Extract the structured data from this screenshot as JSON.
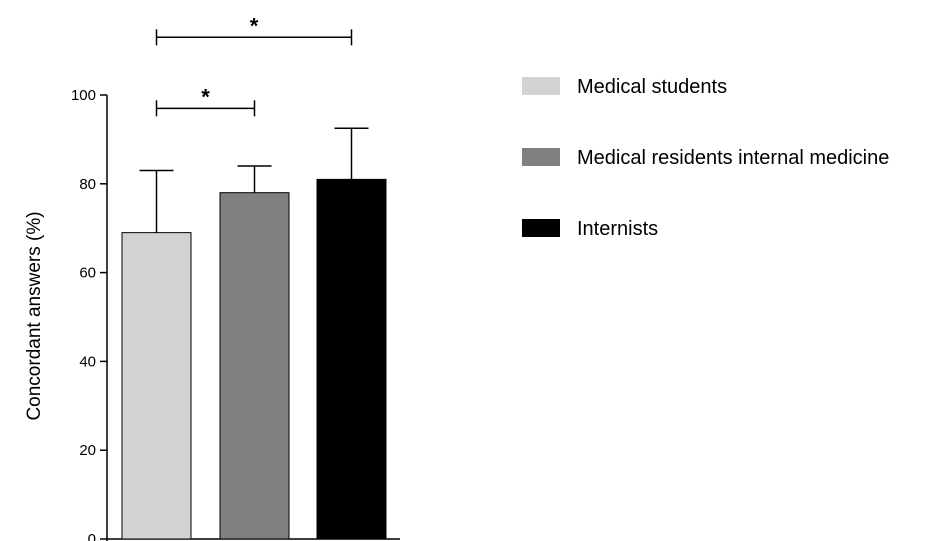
{
  "chart_data": {
    "type": "bar",
    "title": "",
    "xlabel": "",
    "ylabel": "Concordant answers (%)",
    "ylim": [
      0,
      100
    ],
    "yticks": [
      0,
      20,
      40,
      60,
      80,
      100
    ],
    "grid": false,
    "legend_position": "right",
    "categories": [
      "Medical students",
      "Medical residents internal medicine",
      "Internists"
    ],
    "values": [
      69,
      78,
      81
    ],
    "error_upper": [
      83,
      84,
      92.5
    ],
    "colors": [
      "#d3d3d3",
      "#808080",
      "#000000"
    ],
    "significance": [
      {
        "from": 0,
        "to": 1,
        "label": "*",
        "level": 97
      },
      {
        "from": 0,
        "to": 2,
        "label": "*",
        "level": 113
      }
    ]
  }
}
